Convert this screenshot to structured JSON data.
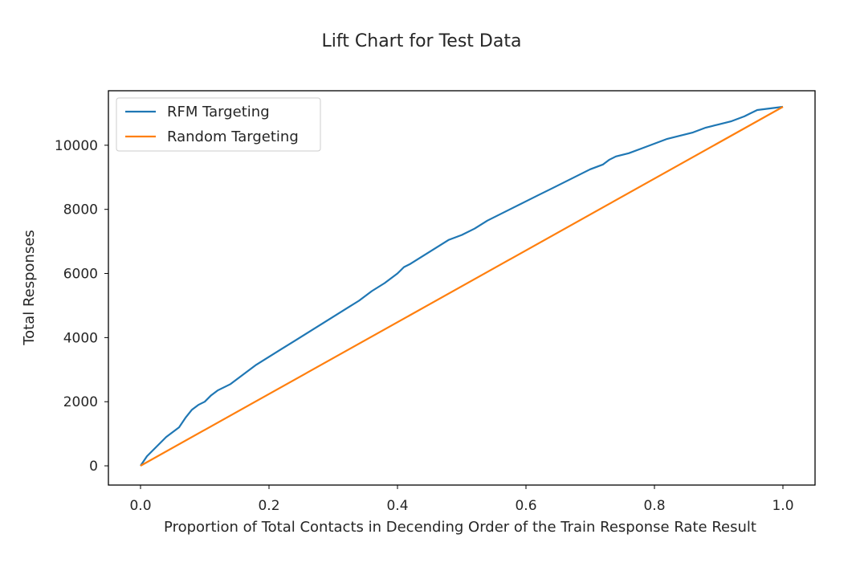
{
  "chart_data": {
    "type": "line",
    "title": "Lift Chart for Test Data",
    "xlabel": "Proportion of Total Contacts in Decending Order of the Train Response Rate Result",
    "ylabel": "Total Responses",
    "xlim": [
      -0.05,
      1.05
    ],
    "ylim": [
      -600,
      11700
    ],
    "xticks": [
      0.0,
      0.2,
      0.4,
      0.6,
      0.8,
      1.0
    ],
    "xtick_labels": [
      "0.0",
      "0.2",
      "0.4",
      "0.6",
      "0.8",
      "1.0"
    ],
    "yticks": [
      0,
      2000,
      4000,
      6000,
      8000,
      10000
    ],
    "ytick_labels": [
      "0",
      "2000",
      "4000",
      "6000",
      "8000",
      "10000"
    ],
    "grid": false,
    "legend_position": "upper-left",
    "series": [
      {
        "name": "RFM Targeting",
        "color": "#1f77b4",
        "x": [
          0.0,
          0.01,
          0.02,
          0.03,
          0.04,
          0.05,
          0.06,
          0.07,
          0.08,
          0.09,
          0.1,
          0.11,
          0.12,
          0.14,
          0.16,
          0.18,
          0.2,
          0.22,
          0.24,
          0.26,
          0.28,
          0.3,
          0.32,
          0.34,
          0.36,
          0.38,
          0.39,
          0.4,
          0.41,
          0.42,
          0.44,
          0.46,
          0.48,
          0.5,
          0.52,
          0.54,
          0.56,
          0.58,
          0.6,
          0.62,
          0.64,
          0.66,
          0.68,
          0.7,
          0.72,
          0.73,
          0.74,
          0.75,
          0.76,
          0.78,
          0.8,
          0.82,
          0.84,
          0.86,
          0.88,
          0.89,
          0.9,
          0.92,
          0.94,
          0.95,
          0.96,
          0.98,
          1.0
        ],
        "y": [
          0,
          300,
          500,
          700,
          900,
          1050,
          1200,
          1500,
          1750,
          1900,
          2000,
          2200,
          2350,
          2550,
          2850,
          3150,
          3400,
          3650,
          3900,
          4150,
          4400,
          4650,
          4900,
          5150,
          5450,
          5700,
          5850,
          6000,
          6200,
          6300,
          6550,
          6800,
          7050,
          7200,
          7400,
          7650,
          7850,
          8050,
          8250,
          8450,
          8650,
          8850,
          9050,
          9250,
          9400,
          9550,
          9650,
          9700,
          9750,
          9900,
          10050,
          10200,
          10300,
          10400,
          10550,
          10600,
          10650,
          10750,
          10900,
          11000,
          11100,
          11150,
          11200
        ]
      },
      {
        "name": "Random Targeting",
        "color": "#ff7f0e",
        "x": [
          0.0,
          1.0
        ],
        "y": [
          0,
          11200
        ]
      }
    ]
  }
}
